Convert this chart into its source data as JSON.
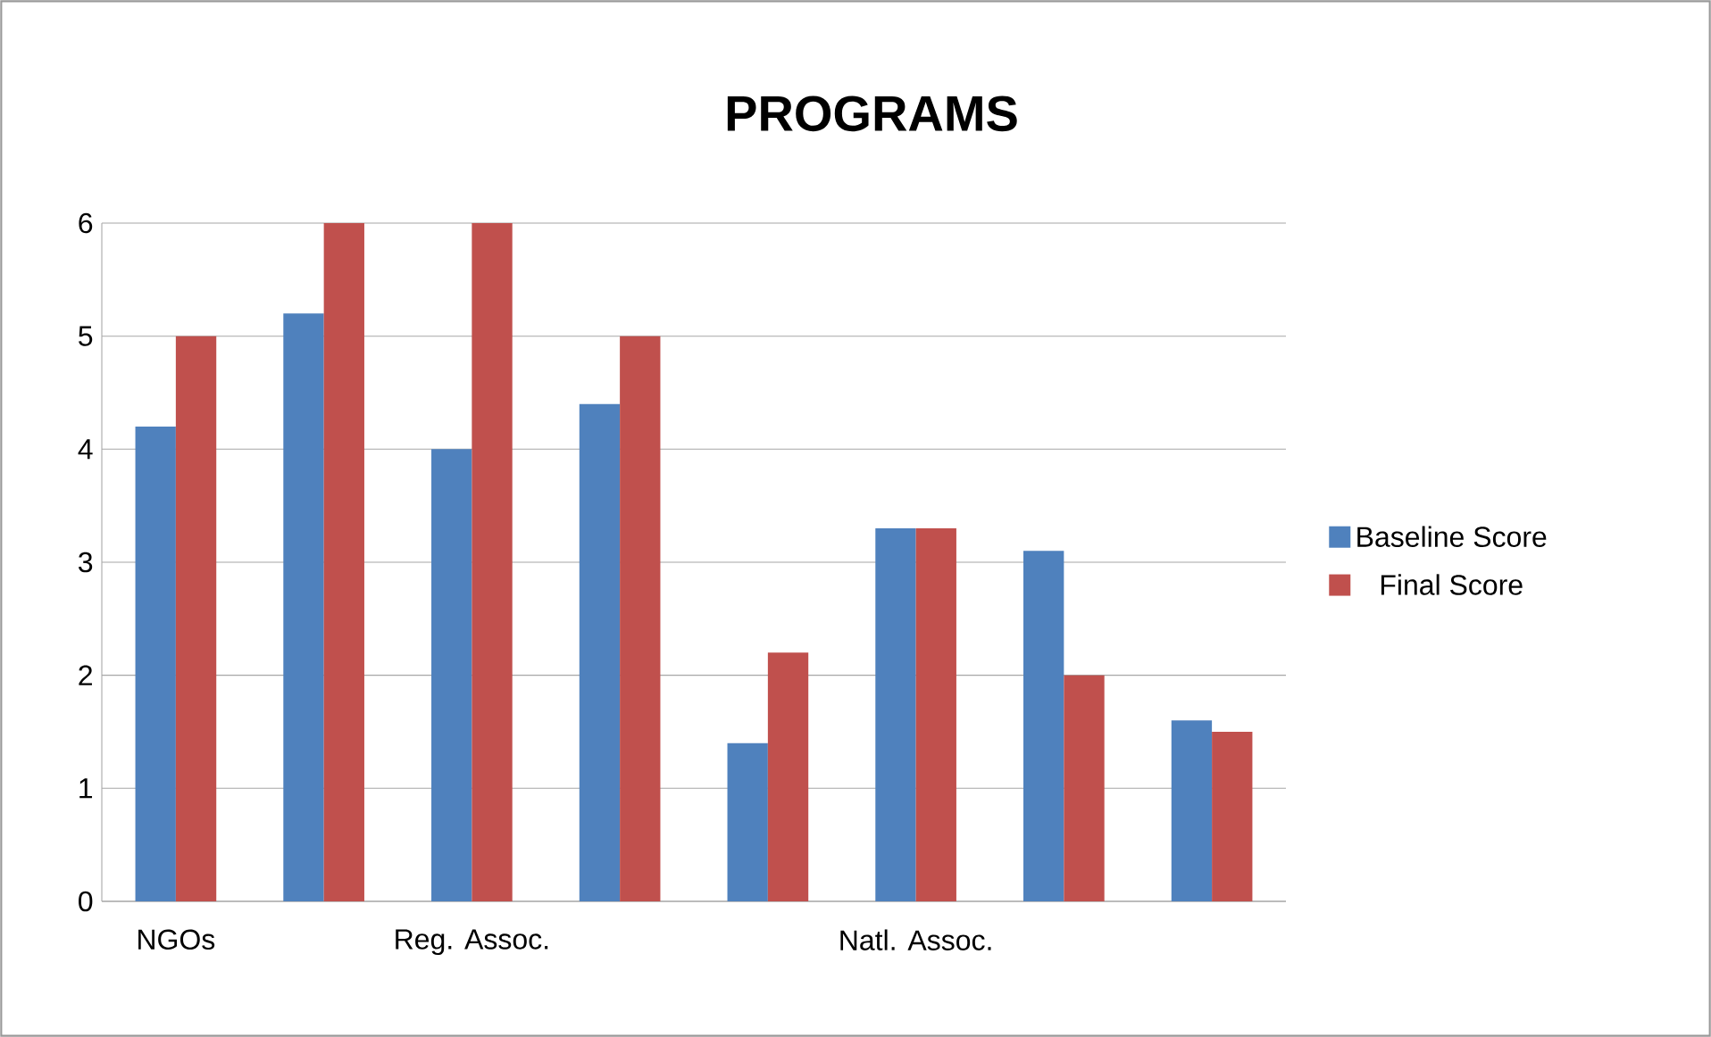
{
  "chart_data": {
    "type": "bar",
    "title": "PROGRAMS",
    "categories": [
      "NGOs",
      null,
      "Reg. Assoc.",
      null,
      null,
      "Natl. Assoc.",
      null,
      null
    ],
    "series": [
      {
        "name": "Baseline Score",
        "color": "#4f81bd",
        "values": [
          4.2,
          5.2,
          4.0,
          4.4,
          1.4,
          3.3,
          3.1,
          1.6
        ]
      },
      {
        "name": "Final Score",
        "color": "#c0504d",
        "values": [
          5,
          6,
          6,
          5,
          2.2,
          3.3,
          2,
          1.5
        ]
      }
    ],
    "ylim": [
      0,
      6
    ],
    "yticks": [
      0,
      1,
      2,
      3,
      4,
      5,
      6
    ],
    "grid": "y",
    "legend": "right"
  }
}
